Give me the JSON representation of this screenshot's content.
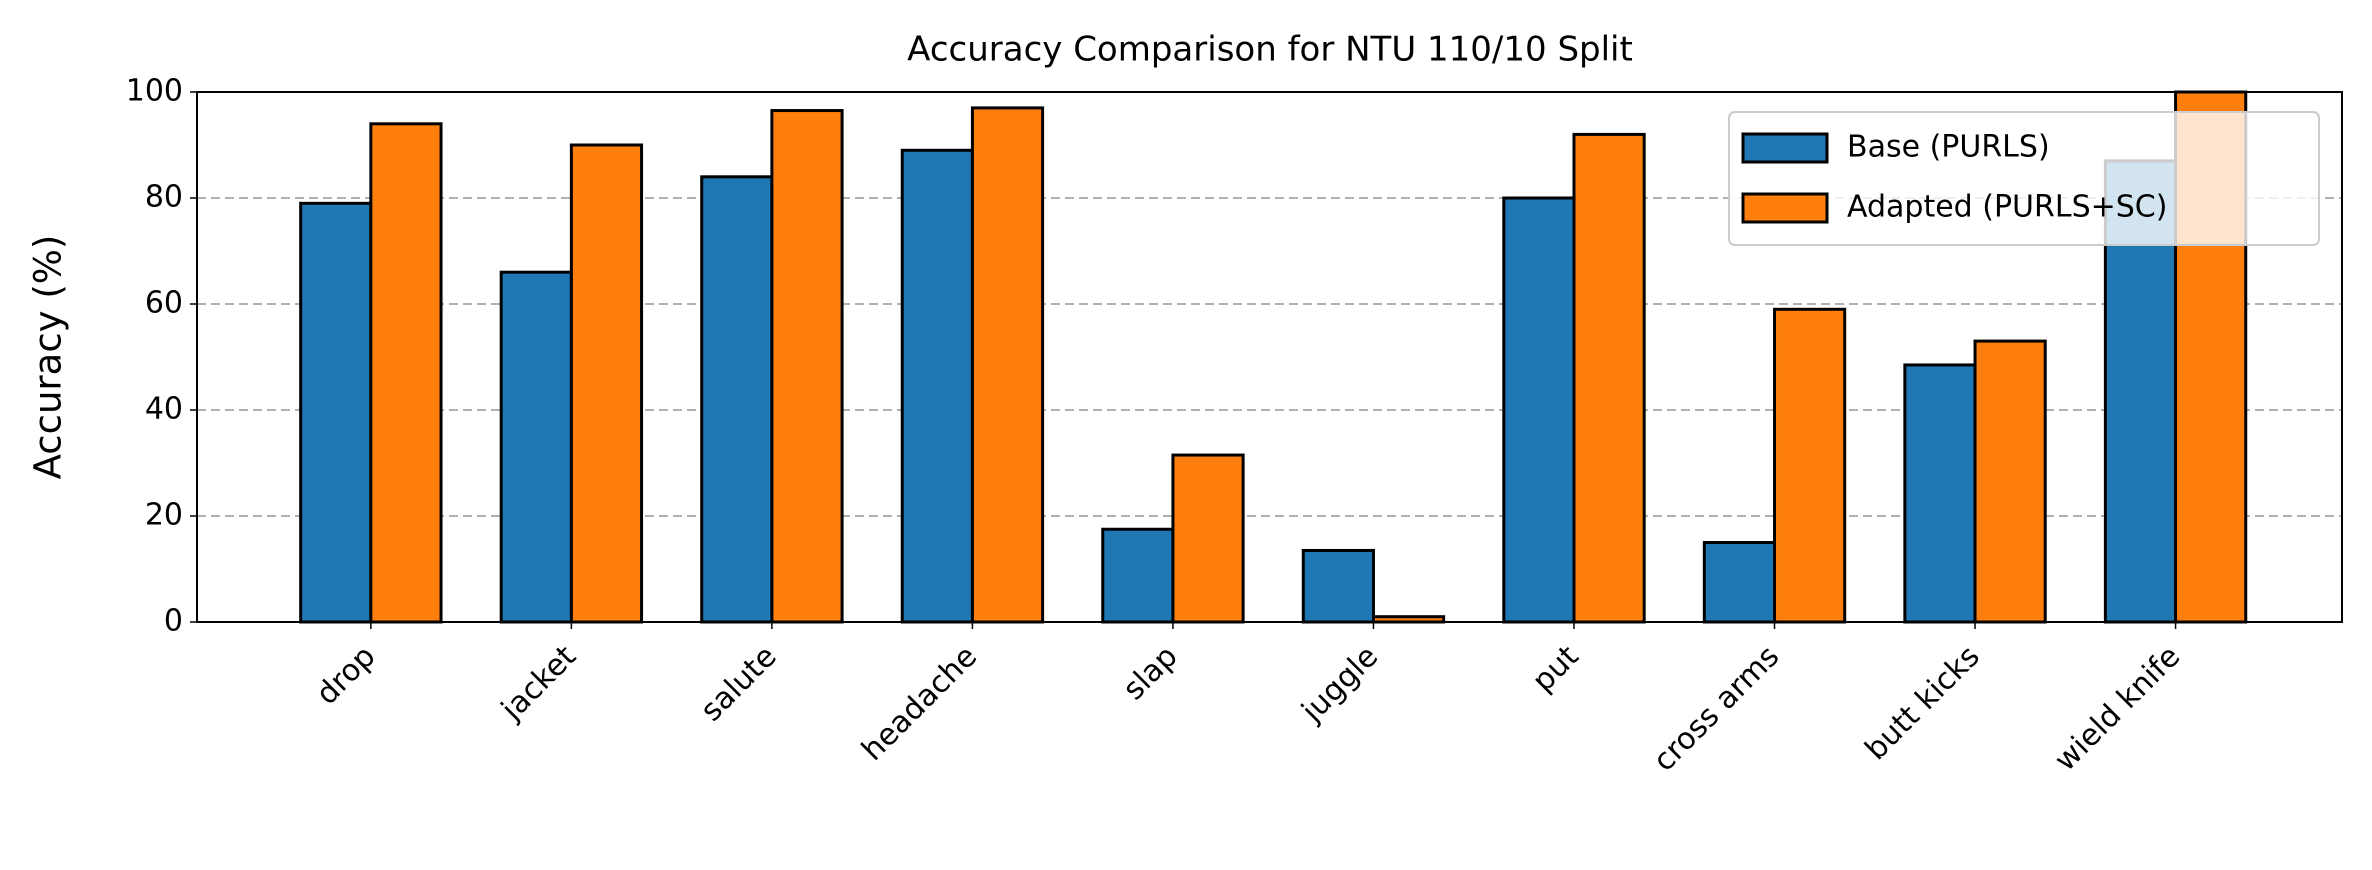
{
  "chart_data": {
    "type": "bar",
    "title": "Accuracy Comparison for NTU 110/10 Split",
    "y_label": "Accuracy (%)",
    "categories": [
      "drop",
      "jacket",
      "salute",
      "headache",
      "slap",
      "juggle",
      "put",
      "cross arms",
      "butt kicks",
      "wield knife"
    ],
    "series": [
      {
        "name": "Base (PURLS)",
        "color": "#1f77b4",
        "values": [
          79,
          66,
          84,
          89,
          17.5,
          13.5,
          80,
          15,
          48.5,
          87
        ]
      },
      {
        "name": "Adapted (PURLS+SC)",
        "color": "#ff7f0e",
        "values": [
          94,
          90,
          96.5,
          97,
          31.5,
          1,
          92,
          59,
          53,
          100
        ]
      }
    ],
    "ylim": [
      0,
      100
    ],
    "yticks": [
      0,
      20,
      40,
      60,
      80,
      100
    ],
    "grid": true,
    "legend": "upper right"
  }
}
